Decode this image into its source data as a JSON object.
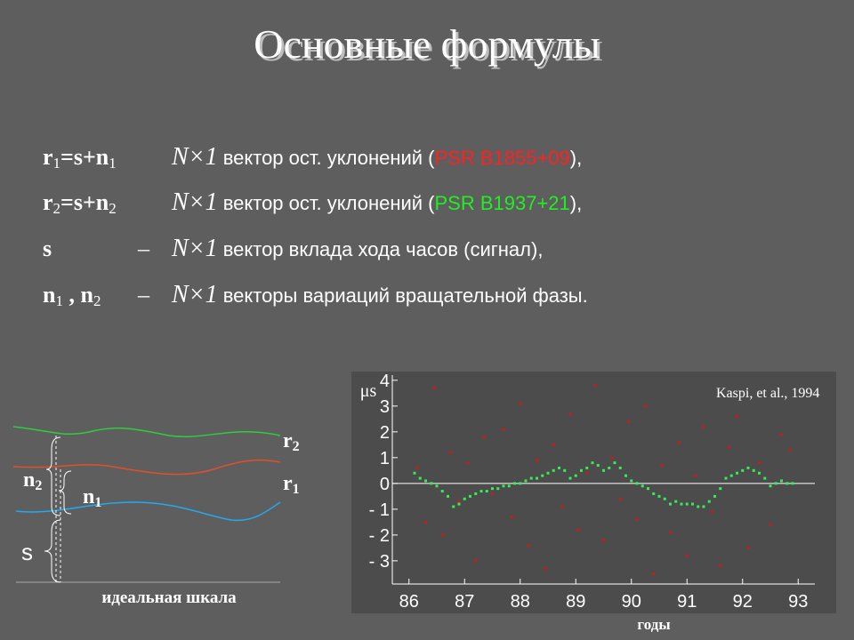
{
  "title": "Основные формулы",
  "formulas": [
    {
      "lhs": [
        {
          "t": "r",
          "sub": "1"
        },
        {
          "t": "=s+n",
          "sub": "1"
        }
      ],
      "dim": "N×1",
      "text": " вектор ост. уклонений (",
      "psr": "PSR B1855+09",
      "psr_color": "#ff2020",
      "end": "),"
    },
    {
      "lhs": [
        {
          "t": "r",
          "sub": "2"
        },
        {
          "t": "=s+n",
          "sub": "2"
        }
      ],
      "dim": "N×1",
      "text": " вектор ост. уклонений (",
      "psr": "PSR B1937+21",
      "psr_color": "#22ee22",
      "end": "),"
    },
    {
      "lhs": [
        {
          "t": "s"
        }
      ],
      "dash": "–",
      "dim": "N×1",
      "text": " вектор вклада хода часов (сигнал),"
    },
    {
      "lhs": [
        {
          "t": "n",
          "sub": "1"
        },
        {
          "t": " ,  n",
          "sub": "2"
        }
      ],
      "dash": "–",
      "dim": "N×1",
      "text": " векторы вариаций вращательной фазы."
    }
  ],
  "diagram": {
    "r2": {
      "t": "r",
      "sub": "2"
    },
    "r1": {
      "t": "r",
      "sub": "1"
    },
    "n2": {
      "t": "n",
      "sub": "2"
    },
    "n1": {
      "t": "n",
      "sub": "1"
    },
    "s": "s",
    "baseline": "идеальная шкала"
  },
  "chart_data": {
    "type": "scatter",
    "ylabel": "μs",
    "xlabel": "годы",
    "annotation": "Kaspi, et al., 1994",
    "xlim": [
      85.7,
      93.3
    ],
    "xticks": [
      86,
      87,
      88,
      89,
      90,
      91,
      92,
      93
    ],
    "ylim": [
      -3.9,
      4.2
    ],
    "yticks": [
      {
        "value": -3,
        "label": "- 3"
      },
      {
        "value": -2,
        "label": "- 2"
      },
      {
        "value": -1,
        "label": "- 1"
      },
      0,
      1,
      2,
      3,
      4
    ],
    "zero_line": true,
    "series": [
      {
        "color": "#cc1a1a",
        "x": [
          86.15,
          86.3,
          86.45,
          86.6,
          86.75,
          86.9,
          87.05,
          87.2,
          87.35,
          87.5,
          87.7,
          87.85,
          88.0,
          88.15,
          88.3,
          88.45,
          88.6,
          88.75,
          88.9,
          89.05,
          89.2,
          89.35,
          89.5,
          89.65,
          89.8,
          89.95,
          90.1,
          90.25,
          90.4,
          90.55,
          90.7,
          90.85,
          91.0,
          91.15,
          91.3,
          91.45,
          91.6,
          91.75,
          91.9,
          92.1,
          92.3,
          92.5,
          92.7,
          92.85
        ],
        "values": [
          0.6,
          -1.5,
          3.7,
          -2.0,
          1.2,
          -0.7,
          0.8,
          -3.0,
          1.8,
          -0.4,
          2.1,
          -1.3,
          3.1,
          -2.4,
          0.9,
          -3.3,
          1.5,
          -0.9,
          2.7,
          -1.8,
          0.4,
          3.8,
          -2.2,
          1.0,
          -0.6,
          2.4,
          -1.4,
          3.0,
          -3.5,
          0.7,
          -1.9,
          1.6,
          -2.8,
          0.3,
          2.2,
          -1.1,
          -3.2,
          1.4,
          2.6,
          -2.5,
          0.8,
          -1.6,
          1.9,
          1.3
        ]
      },
      {
        "color": "#33ee55",
        "x": [
          86.1,
          86.2,
          86.3,
          86.4,
          86.5,
          86.6,
          86.7,
          86.8,
          86.9,
          87.0,
          87.1,
          87.2,
          87.3,
          87.4,
          87.5,
          87.6,
          87.7,
          87.8,
          87.9,
          88.0,
          88.1,
          88.2,
          88.3,
          88.4,
          88.5,
          88.6,
          88.7,
          88.8,
          88.9,
          89.0,
          89.1,
          89.2,
          89.3,
          89.4,
          89.5,
          89.6,
          89.7,
          89.8,
          89.9,
          90.0,
          90.1,
          90.2,
          90.3,
          90.4,
          90.5,
          90.6,
          90.7,
          90.8,
          90.9,
          91.0,
          91.1,
          91.2,
          91.3,
          91.4,
          91.5,
          91.6,
          91.7,
          91.8,
          91.9,
          92.0,
          92.1,
          92.2,
          92.3,
          92.4,
          92.5,
          92.6,
          92.7,
          92.8,
          92.9
        ],
        "values": [
          0.4,
          0.2,
          0.1,
          0.0,
          -0.1,
          -0.3,
          -0.5,
          -0.9,
          -0.8,
          -0.6,
          -0.5,
          -0.4,
          -0.3,
          -0.3,
          -0.2,
          -0.2,
          -0.1,
          -0.1,
          0.0,
          0.0,
          0.1,
          0.2,
          0.2,
          0.3,
          0.4,
          0.5,
          0.6,
          0.5,
          0.2,
          0.3,
          0.5,
          0.6,
          0.8,
          0.7,
          0.5,
          0.6,
          0.8,
          0.6,
          0.3,
          0.1,
          0.0,
          -0.1,
          -0.2,
          -0.4,
          -0.5,
          -0.6,
          -0.8,
          -0.7,
          -0.8,
          -0.8,
          -0.8,
          -0.9,
          -0.9,
          -0.7,
          -0.5,
          -0.2,
          0.2,
          0.3,
          0.4,
          0.5,
          0.6,
          0.5,
          0.4,
          0.2,
          -0.1,
          0.0,
          0.1,
          0.0,
          0.0
        ]
      }
    ]
  }
}
